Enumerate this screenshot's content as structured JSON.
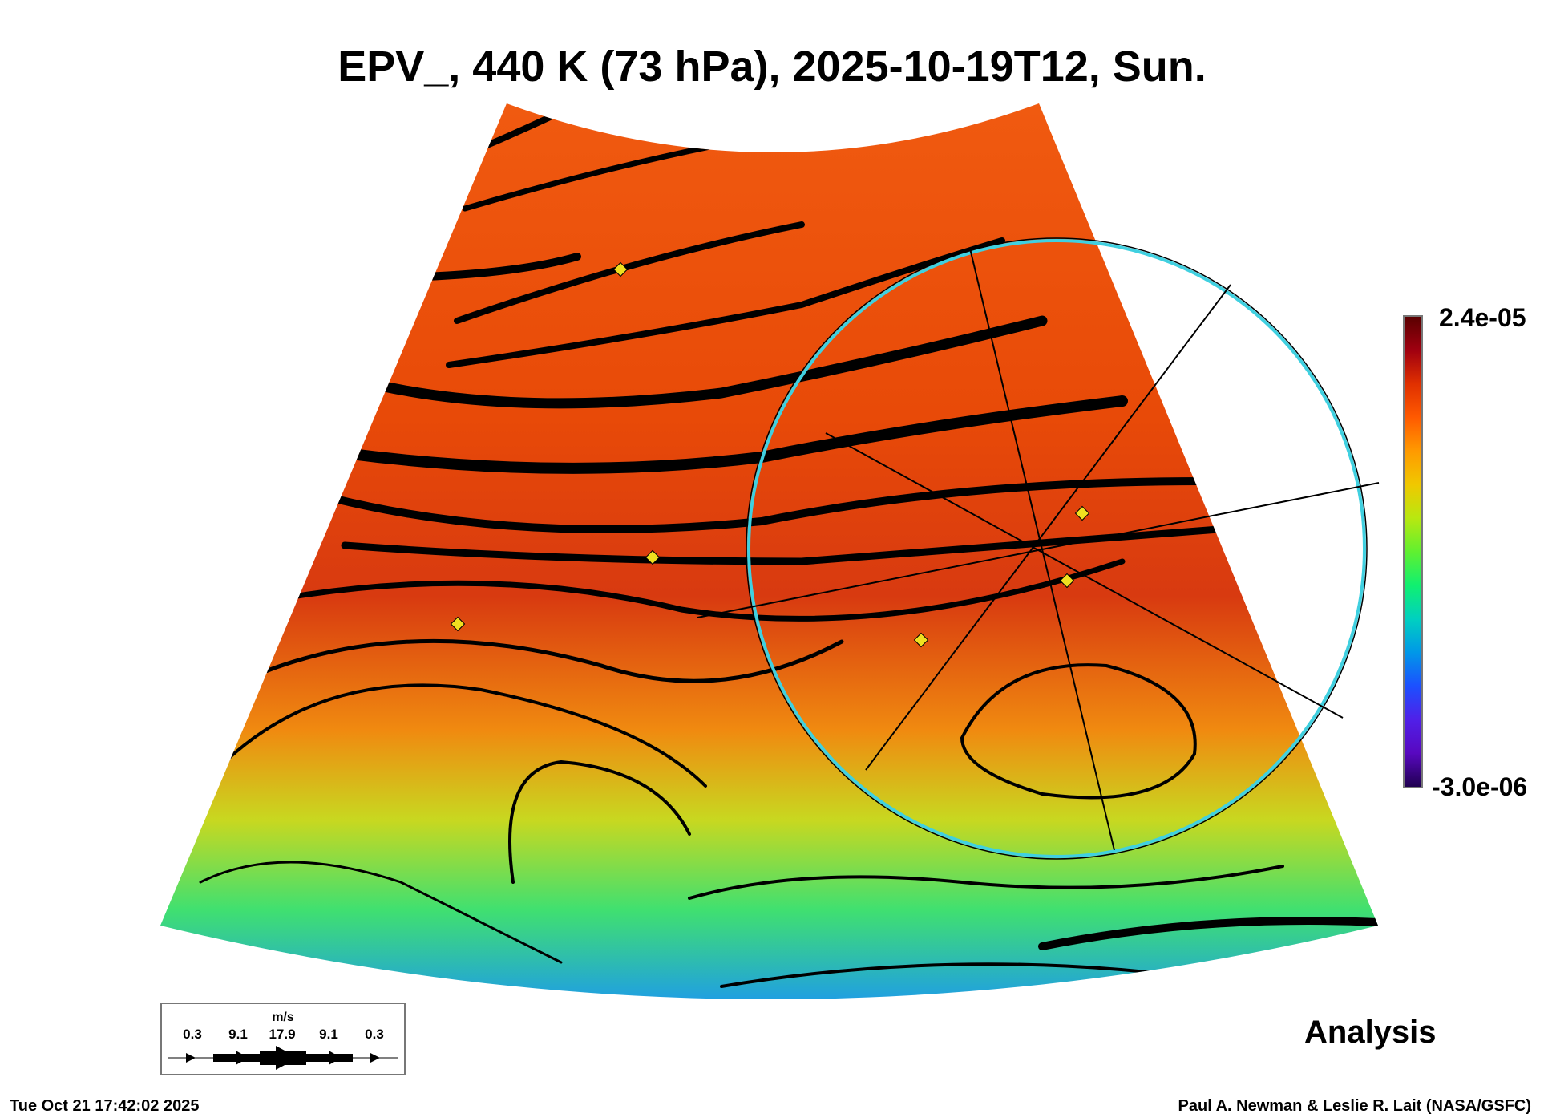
{
  "chart_data": {
    "type": "heatmap",
    "title": "EPV_, 440 K (73 hPa), 2025-10-19T12, Sun.",
    "variable": "EPV_",
    "level": "440 K (73 hPa)",
    "colorbar": {
      "max_label": "2.4e-05",
      "min_label": "-3.0e-06",
      "range": [
        -3e-06,
        2.4e-05
      ]
    },
    "overlay": "streamlines",
    "wind_legend": {
      "unit": "m/s",
      "values": [
        "0.3",
        "9.1",
        "17.9",
        "9.1",
        "0.3"
      ]
    },
    "colors": {
      "high": "#5a0000",
      "mid": "#ff9a00",
      "low": "#200050",
      "circle": "#40d0e0"
    }
  },
  "labels": {
    "analysis": "Analysis",
    "timestamp": "Tue Oct 21 17:42:02 2025",
    "credit": "Paul A. Newman & Leslie R. Lait (NASA/GSFC)"
  }
}
